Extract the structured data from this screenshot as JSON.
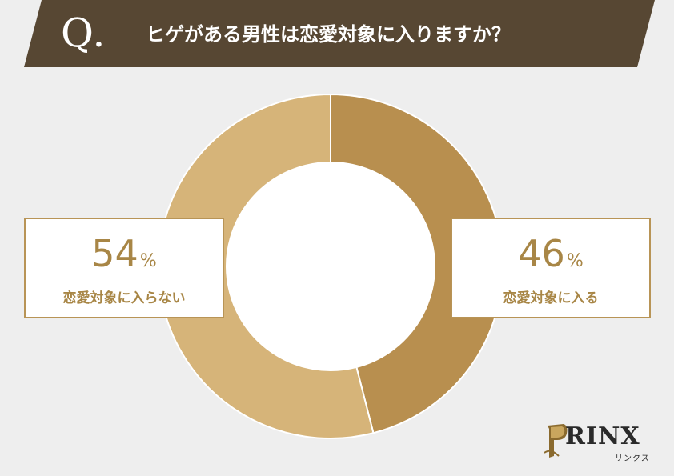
{
  "header": {
    "q_mark": "Q.",
    "question": "ヒゲがある男性は恋愛対象に入りますか？"
  },
  "colors": {
    "banner": "#574733",
    "slice_enter": "#b88f4f",
    "slice_not": "#d6b479",
    "accent_text": "#a88646",
    "background": "#eeeeee"
  },
  "chart_data": {
    "type": "pie",
    "donut": true,
    "title": "ヒゲがある男性は恋愛対象に入りますか？",
    "slices": [
      {
        "label": "恋愛対象に入る",
        "value": 46,
        "display": "46",
        "unit": "%"
      },
      {
        "label": "恋愛対象に入らない",
        "value": 54,
        "display": "54",
        "unit": "%"
      }
    ]
  },
  "logo": {
    "brand": "RINX",
    "sub": "リンクス",
    "icon": "prinx-crest-icon"
  }
}
